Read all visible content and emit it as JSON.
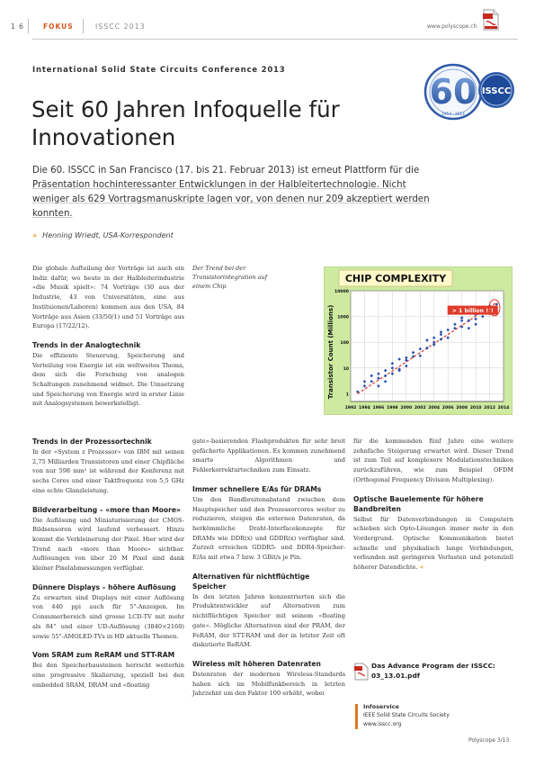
{
  "header": {
    "page_number": "1 6",
    "section": "FOKUS",
    "issue": "ISSCC 2013",
    "url": "www.polyscope.ch"
  },
  "kicker": "International Solid State Circuits Conference 2013",
  "headline_lines": [
    "Seit 60 Jahren Infoquelle für",
    "Innovationen"
  ],
  "lead": {
    "prefix": "Die 60. ISSCC in San Francisco (17. bis 21. Februar 2013) ist erneut Plattform für die ",
    "underlined": "Präsentation hochinteressanter Entwicklungen in der Halbleitertechnologie. Nicht weniger als 629 Vortragsmanuskripte lagen vor, von denen nur 209 akzeptiert werden konnten."
  },
  "author": {
    "mark": "»",
    "text": "Henning Wriedt, USA-Korrespondent"
  },
  "logo": {
    "number": "60",
    "label": "ISSCC",
    "years": "1954 · 2013",
    "ring_color": "#2f5aa8"
  },
  "caption": "Der Trend bei der Transistorintegration auf einem Chip",
  "chart_data": {
    "type": "scatter",
    "title": "CHIP COMPLEXITY",
    "ylabel": "Transistor Count (Millions)",
    "xlabel": "",
    "annotation": "> 1 billion !!!",
    "x_ticks": [
      "1992",
      "1994",
      "1996",
      "1998",
      "2000",
      "2002",
      "2004",
      "2006",
      "2008",
      "2010",
      "2012",
      "2014"
    ],
    "y_ticks": [
      "1",
      "10",
      "100",
      "1000",
      "10000"
    ],
    "xlim": [
      1992,
      2014
    ],
    "ylim": [
      0.5,
      10000
    ],
    "yscale": "log",
    "grid": true,
    "panel_color": "#cdeaa0",
    "point_color": "#2b4fb0",
    "trend_color": "#d93a2a",
    "points": [
      [
        1993,
        1.2
      ],
      [
        1994,
        2
      ],
      [
        1994,
        3
      ],
      [
        1995,
        3
      ],
      [
        1995,
        5
      ],
      [
        1996,
        2
      ],
      [
        1996,
        4
      ],
      [
        1996,
        6
      ],
      [
        1997,
        3
      ],
      [
        1997,
        5
      ],
      [
        1997,
        8
      ],
      [
        1998,
        6
      ],
      [
        1998,
        10
      ],
      [
        1998,
        15
      ],
      [
        1999,
        8
      ],
      [
        1999,
        9
      ],
      [
        1999,
        22
      ],
      [
        2000,
        20
      ],
      [
        2000,
        25
      ],
      [
        2000,
        12
      ],
      [
        2001,
        40
      ],
      [
        2001,
        28
      ],
      [
        2002,
        55
      ],
      [
        2002,
        30
      ],
      [
        2003,
        60
      ],
      [
        2003,
        120
      ],
      [
        2004,
        100
      ],
      [
        2004,
        150
      ],
      [
        2004,
        80
      ],
      [
        2005,
        250
      ],
      [
        2005,
        200
      ],
      [
        2005,
        130
      ],
      [
        2006,
        300
      ],
      [
        2006,
        150
      ],
      [
        2007,
        350
      ],
      [
        2007,
        500
      ],
      [
        2008,
        700
      ],
      [
        2008,
        400
      ],
      [
        2008,
        900
      ],
      [
        2009,
        350
      ],
      [
        2009,
        700
      ],
      [
        2010,
        1200
      ],
      [
        2010,
        800
      ],
      [
        2010,
        500
      ],
      [
        2011,
        2000
      ],
      [
        2011,
        1500
      ],
      [
        2011,
        1000
      ],
      [
        2012,
        1800
      ],
      [
        2012,
        1300
      ],
      [
        2012,
        2600
      ],
      [
        2013,
        3000
      ],
      [
        2013,
        2000
      ]
    ],
    "trend": [
      [
        1993,
        1
      ],
      [
        2013,
        3500
      ]
    ]
  },
  "columns": {
    "intro": "Die globale Aufteilung der Vorträge ist auch ein Indiz dafür, wo heute in der Halbleiterindustrie «die Musik spielt»: 74 Vorträge (30 aus der Industrie, 43 von Universitäten, eine aus Instituionen/Laboren) kommen aus den USA, 84 Vorträge aus Asien (33/50/1) und 51 Vorträge aus Europa (17/22/12).",
    "analog_title": "Trends in der Analogtechnik",
    "analog_text": "Die effiziente Steuerung, Speicherung und Verteilung von Energie ist ein weltweites Thema, dem sich die Forschung von analogen Schaltungen zunehmend widmet. Die Umsetzung und Speicherung von Energie wird in erster Linie mit Analogsystemen bewerkstelligt.",
    "col1": [
      {
        "title": "Trends in der Prozessortechnik",
        "text": "In der «System z Prozessor» von IBM mit seinen 2,75 Milliarden Transistoren und einer Chipfläche von nur 598 mm² ist während der Konferenz mit sechs Cores und einer Taktfrequenz von 5,5 GHz eine echte Glanzleistung."
      },
      {
        "title": "Bildverarbeitung – «more than Moore»",
        "text": "Die Auflösung und Miniaturisierung der CMOS-Bildsensoren wird laufend verbessert. Hinzu kommt die Verkleinerung der Pixel. Hier wird der Trend nach «more than Moore» sichtbar. Auflösungen von über 20 M Pixel sind dank kleiner Pixelabmessungen verfügbar."
      },
      {
        "title": "Dünnere Displays – höhere Auflösung",
        "text": "Zu erwarten sind Displays mit einer Auflösung von 440 ppi auch für 5\"-Anzeigen. Im Consumerbereich sind grosse LCD-TV mit mehr als 84\" und einer UD-Auflösung (3840×2160) sowie 55\"-AMOLED-TVs in HD aktuelle Themen."
      },
      {
        "title": "Vom SRAM zum ReRAM und STT-RAM",
        "text": "Bei den Speicherbausteinen herrscht weiterhin eine progressive Skalierung, speziell bei den embedded SRAM, DRAM und «floating"
      }
    ],
    "col2": [
      {
        "title": "",
        "text": "gate»-basierenden Flashprodukten für sehr breit gefächerte Applikationen. Es kommen zunehmend smarte Algorithmen und Fehlerkorrekturtechniken zum Einsatz."
      },
      {
        "title": "Immer schnellere E/As für DRAMs",
        "text": "Um den Bandbreitenabstand zwischen dem Hauptspeicher und den Prozessorcores weiter zu reduzieren, steigen die externen Datenraten, da herkömmliche Draht-Interfacekonzepte für DRAMs wie DDR(x) und GDDR(x) verfügbar sind. Zurzeit erreichen GDDR5- und DDR4-Speicher-E/As mit etwa 7 bzw. 3 GBit/s je Pin."
      },
      {
        "title": "Alternativen für nichtflüchtige Speicher",
        "text": "In den letzten Jahren konzentrierten sich die Produktentwickler auf Alternativen zum nichtflüchtigen Speicher mit seinem «floating gate». Mögliche Alternativen sind der PRAM, der FeRAM, der STT-RAM und der in letzter Zeit oft diskutierte ReRAM."
      },
      {
        "title": "Wireless mit höheren Datenraten",
        "text": "Datenraten der modernen Wireless-Standards haben sich im Mobilfunkbereich in letzten Jahrzehnt um den Faktor 100 erhöht, wobei"
      }
    ],
    "col3": [
      {
        "title": "",
        "text": "für die kommenden fünf Jahre eine weitere zehnfache Steigerung erwartet wird. Dieser Trend ist zum Teil auf komplexere Modulationstechniken zurückzuführen, wie zum Beispiel OFDM (Orthogonal Frequency Division Multiplexing)."
      },
      {
        "title": "Optische Bauelemente für höhere Bandbreiten",
        "text": "Selbst für Datenverbindungen in Computern schieben sich Opto-Lösungen immer mehr in den Vordergrund. Optische Kommunikation bietet schnelle und physikalisch lange Verbindungen, verbunden mit geringeren Verlusten und potenziell höherer Datendichte."
      }
    ],
    "end_mark": "«"
  },
  "pdf_ref": {
    "line1": "Das Advance Program der ISSCC:",
    "line2": "03_13.01.pdf"
  },
  "infoservice": {
    "title": "Infoservice",
    "line1": "IEEE Solid State Circuits Society",
    "line2": "www.isscc.org"
  },
  "footer": "Polyscope 3/13",
  "colors": {
    "accent_orange": "#e07a1e",
    "section_red": "#d9541a"
  }
}
